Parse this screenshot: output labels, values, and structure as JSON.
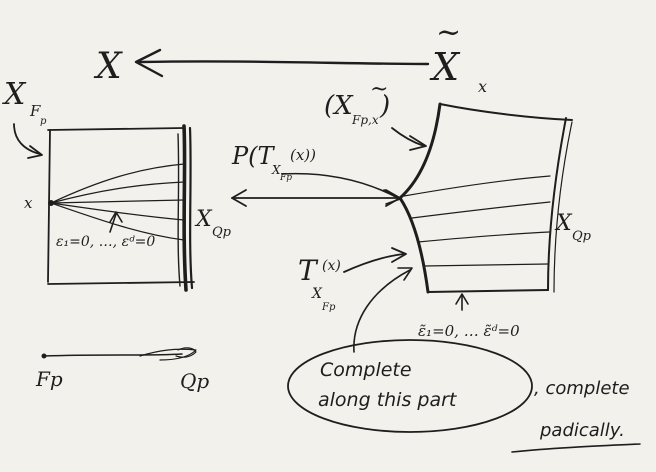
{
  "labels": {
    "top_left_X": "X",
    "top_right_X": "X",
    "top_right_X_sub": "x",
    "tilde": "~",
    "X_Fp": "X",
    "X_Fp_sub": "F",
    "X_Fp_subsub": "p",
    "point_x": "x",
    "epsilon_conditions": "ε₁=0, …, εᵈ=0",
    "X_Qp_left": "X",
    "X_Qp_left_sub": "Qp",
    "P_T": "P(T",
    "P_T_sub": "X",
    "P_T_subsub": "Fp",
    "P_T_arg": "(x))",
    "X_Fpx_open": "(X",
    "X_Fpx_sub": "Fp,x",
    "X_Fpx_close": ")",
    "X_Qp_right": "X",
    "X_Qp_right_sub": "Qp",
    "T_X": "T",
    "T_X_arg": "(x)",
    "T_X_sub": "X",
    "T_X_subsub": "Fp",
    "epsilon_tilde_conditions": "ε̃₁=0, … ε̃ᵈ=0",
    "Fp_bottom": "Fp",
    "Qp_bottom": "Qp",
    "complete_line1": "Complete",
    "complete_line2": "along this part",
    "complete_padically_1": ", complete",
    "complete_padically_2": "padically."
  }
}
